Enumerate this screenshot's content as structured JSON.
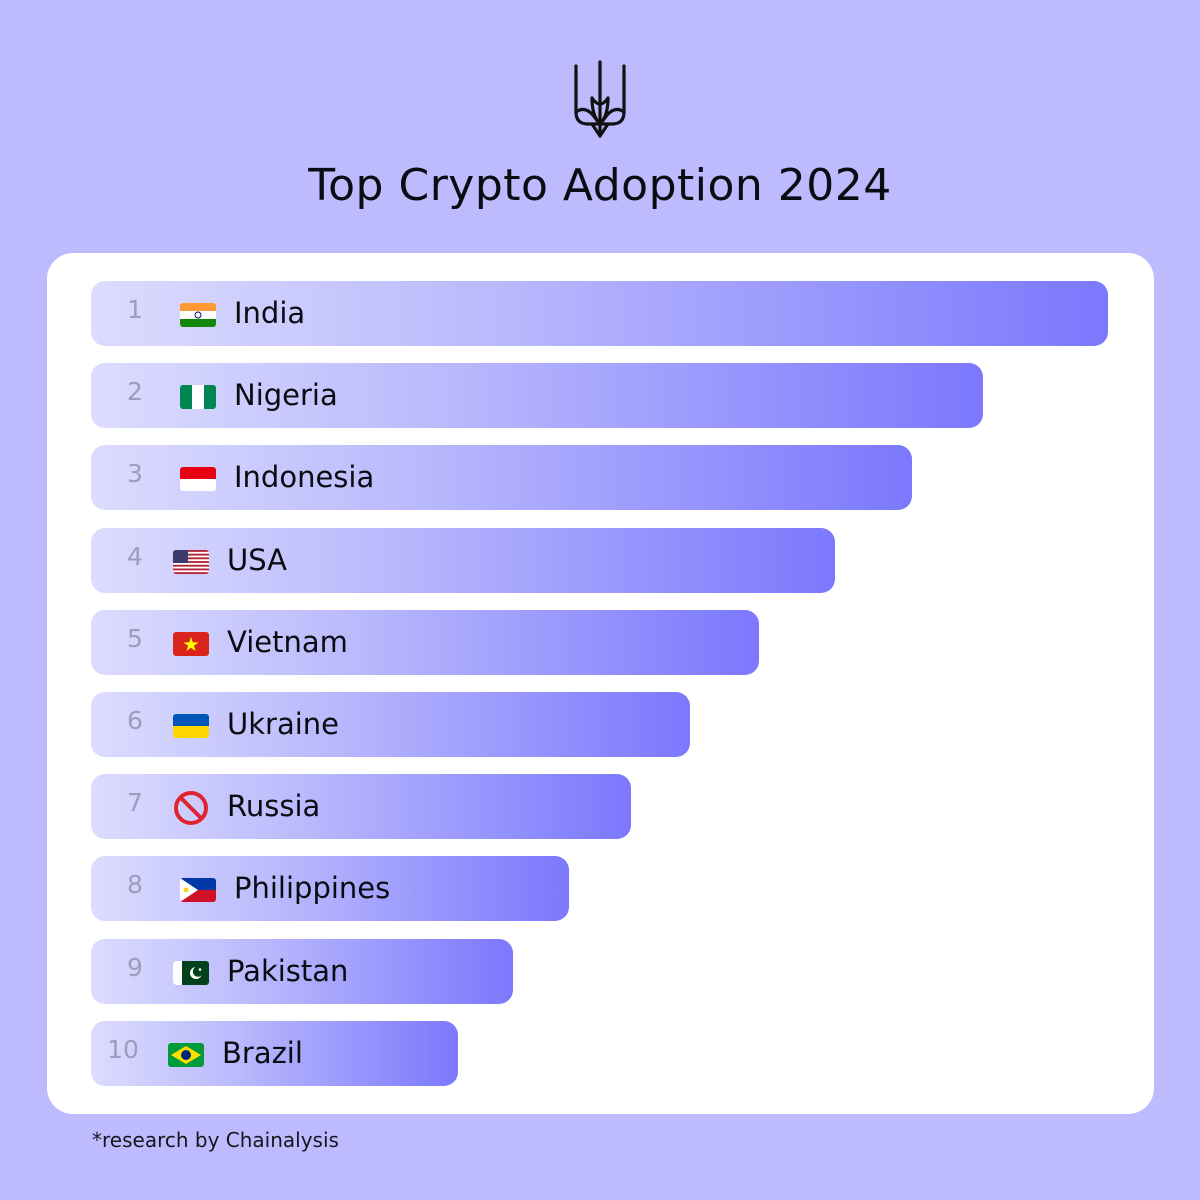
{
  "header": {
    "emblem_icon": "ukraine-trident-icon",
    "title": "Top Crypto Adoption 2024"
  },
  "chart_data": {
    "type": "bar",
    "orientation": "horizontal",
    "title": "Top Crypto Adoption 2024",
    "categories": [
      "India",
      "Nigeria",
      "Indonesia",
      "USA",
      "Vietnam",
      "Ukraine",
      "Russia",
      "Philippines",
      "Pakistan",
      "Brazil"
    ],
    "ranks": [
      "1",
      "2",
      "3",
      "4",
      "5",
      "6",
      "7",
      "8",
      "9",
      "10"
    ],
    "flags": [
      "india-flag-icon",
      "nigeria-flag-icon",
      "indonesia-flag-icon",
      "usa-flag-icon",
      "vietnam-flag-icon",
      "ukraine-flag-icon",
      "prohibited-icon",
      "philippines-flag-icon",
      "pakistan-flag-icon",
      "brazil-flag-icon"
    ],
    "values": [
      10,
      8.77,
      8.07,
      7.32,
      6.57,
      5.89,
      5.31,
      4.7,
      4.15,
      3.61
    ],
    "colors": {
      "bar_start": "#dcdcfe",
      "bar_mid": "#b9b9fd",
      "bar_end": "#7b78fd",
      "background": "#bdbbfd",
      "panel": "#ffffff"
    }
  },
  "footnote": "*research by Chainalysis"
}
